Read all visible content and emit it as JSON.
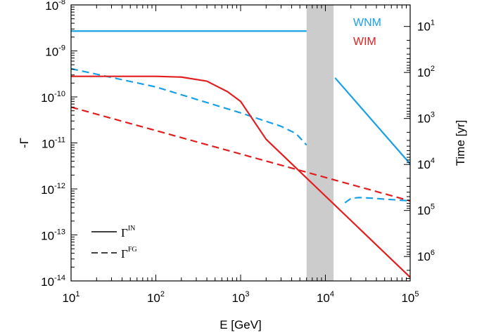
{
  "chart_data": {
    "type": "line",
    "xlabel": "E [GeV]",
    "ylabel": "-Γ",
    "y2label": "Time [yr]",
    "xscale": "log",
    "yscale": "log",
    "xlim": [
      10,
      100000
    ],
    "ylim": [
      1e-14,
      1e-08
    ],
    "x_ticks": [
      {
        "value": 10,
        "base": "10",
        "exp": "1"
      },
      {
        "value": 100,
        "base": "10",
        "exp": "2"
      },
      {
        "value": 1000,
        "base": "10",
        "exp": "3"
      },
      {
        "value": 10000,
        "base": "10",
        "exp": "4"
      },
      {
        "value": 100000,
        "base": "10",
        "exp": "5"
      }
    ],
    "y_ticks": [
      {
        "value": 1e-08,
        "base": "10",
        "exp": "-8"
      },
      {
        "value": 1e-09,
        "base": "10",
        "exp": "-9"
      },
      {
        "value": 1e-10,
        "base": "10",
        "exp": "-10"
      },
      {
        "value": 1e-11,
        "base": "10",
        "exp": "-11"
      },
      {
        "value": 1e-12,
        "base": "10",
        "exp": "-12"
      },
      {
        "value": 1e-13,
        "base": "10",
        "exp": "-13"
      },
      {
        "value": 1e-14,
        "base": "10",
        "exp": "-14"
      }
    ],
    "y2_ticks": [
      {
        "gamma": 3.4e-09,
        "base": "10",
        "exp": "1"
      },
      {
        "gamma": 3.4e-10,
        "base": "10",
        "exp": "2"
      },
      {
        "gamma": 3.4e-11,
        "base": "10",
        "exp": "3"
      },
      {
        "gamma": 3.4e-12,
        "base": "10",
        "exp": "4"
      },
      {
        "gamma": 3.4e-13,
        "base": "10",
        "exp": "5"
      },
      {
        "gamma": 3.4e-14,
        "base": "10",
        "exp": "6"
      }
    ],
    "shaded_band": {
      "x_range": [
        6000,
        12500
      ],
      "color": "#cccccc"
    },
    "series_labels": [
      {
        "text": "WNM",
        "color": "#1aa0e6"
      },
      {
        "text": "WIM",
        "color": "#e21e1e"
      }
    ],
    "legend": {
      "placement": "bottom-left",
      "entries": [
        {
          "symbol": "Γ",
          "sup": "IN",
          "style": "solid"
        },
        {
          "symbol": "Γ",
          "sup": "FG",
          "style": "dashed"
        }
      ]
    },
    "series": [
      {
        "medium": "WNM",
        "kind": "IN",
        "color": "#1aa0e6",
        "style": "solid",
        "x": [
          10,
          6000
        ],
        "y": [
          2.7e-09,
          2.7e-09
        ]
      },
      {
        "medium": "WNM",
        "kind": "IN",
        "color": "#1aa0e6",
        "style": "solid",
        "x": [
          13000,
          100000
        ],
        "y": [
          2.6e-10,
          3.5e-12
        ]
      },
      {
        "medium": "WNM",
        "kind": "FG",
        "color": "#1aa0e6",
        "style": "dashed",
        "x": [
          10,
          100,
          1000,
          3000,
          4500,
          6000
        ],
        "y": [
          4.1e-10,
          1.65e-10,
          4.5e-11,
          2.3e-11,
          1.6e-11,
          9e-12
        ]
      },
      {
        "medium": "WNM",
        "kind": "FG",
        "color": "#1aa0e6",
        "style": "dashed",
        "x": [
          17000,
          20000,
          25000,
          35000,
          50000,
          100000
        ],
        "y": [
          5e-13,
          6.2e-13,
          6.5e-13,
          6.3e-13,
          6e-13,
          5.5e-13
        ]
      },
      {
        "medium": "WIM",
        "kind": "IN",
        "color": "#e21e1e",
        "style": "solid",
        "x": [
          10,
          100,
          200,
          400,
          700,
          1000,
          2000,
          100000
        ],
        "y": [
          2.8e-10,
          2.8e-10,
          2.7e-10,
          2.2e-10,
          1.3e-10,
          8e-11,
          1.2e-11,
          1.2e-14
        ]
      },
      {
        "medium": "WIM",
        "kind": "FG",
        "color": "#e21e1e",
        "style": "dashed",
        "x": [
          10,
          100000
        ],
        "y": [
          6e-11,
          5.5e-13
        ]
      }
    ]
  }
}
